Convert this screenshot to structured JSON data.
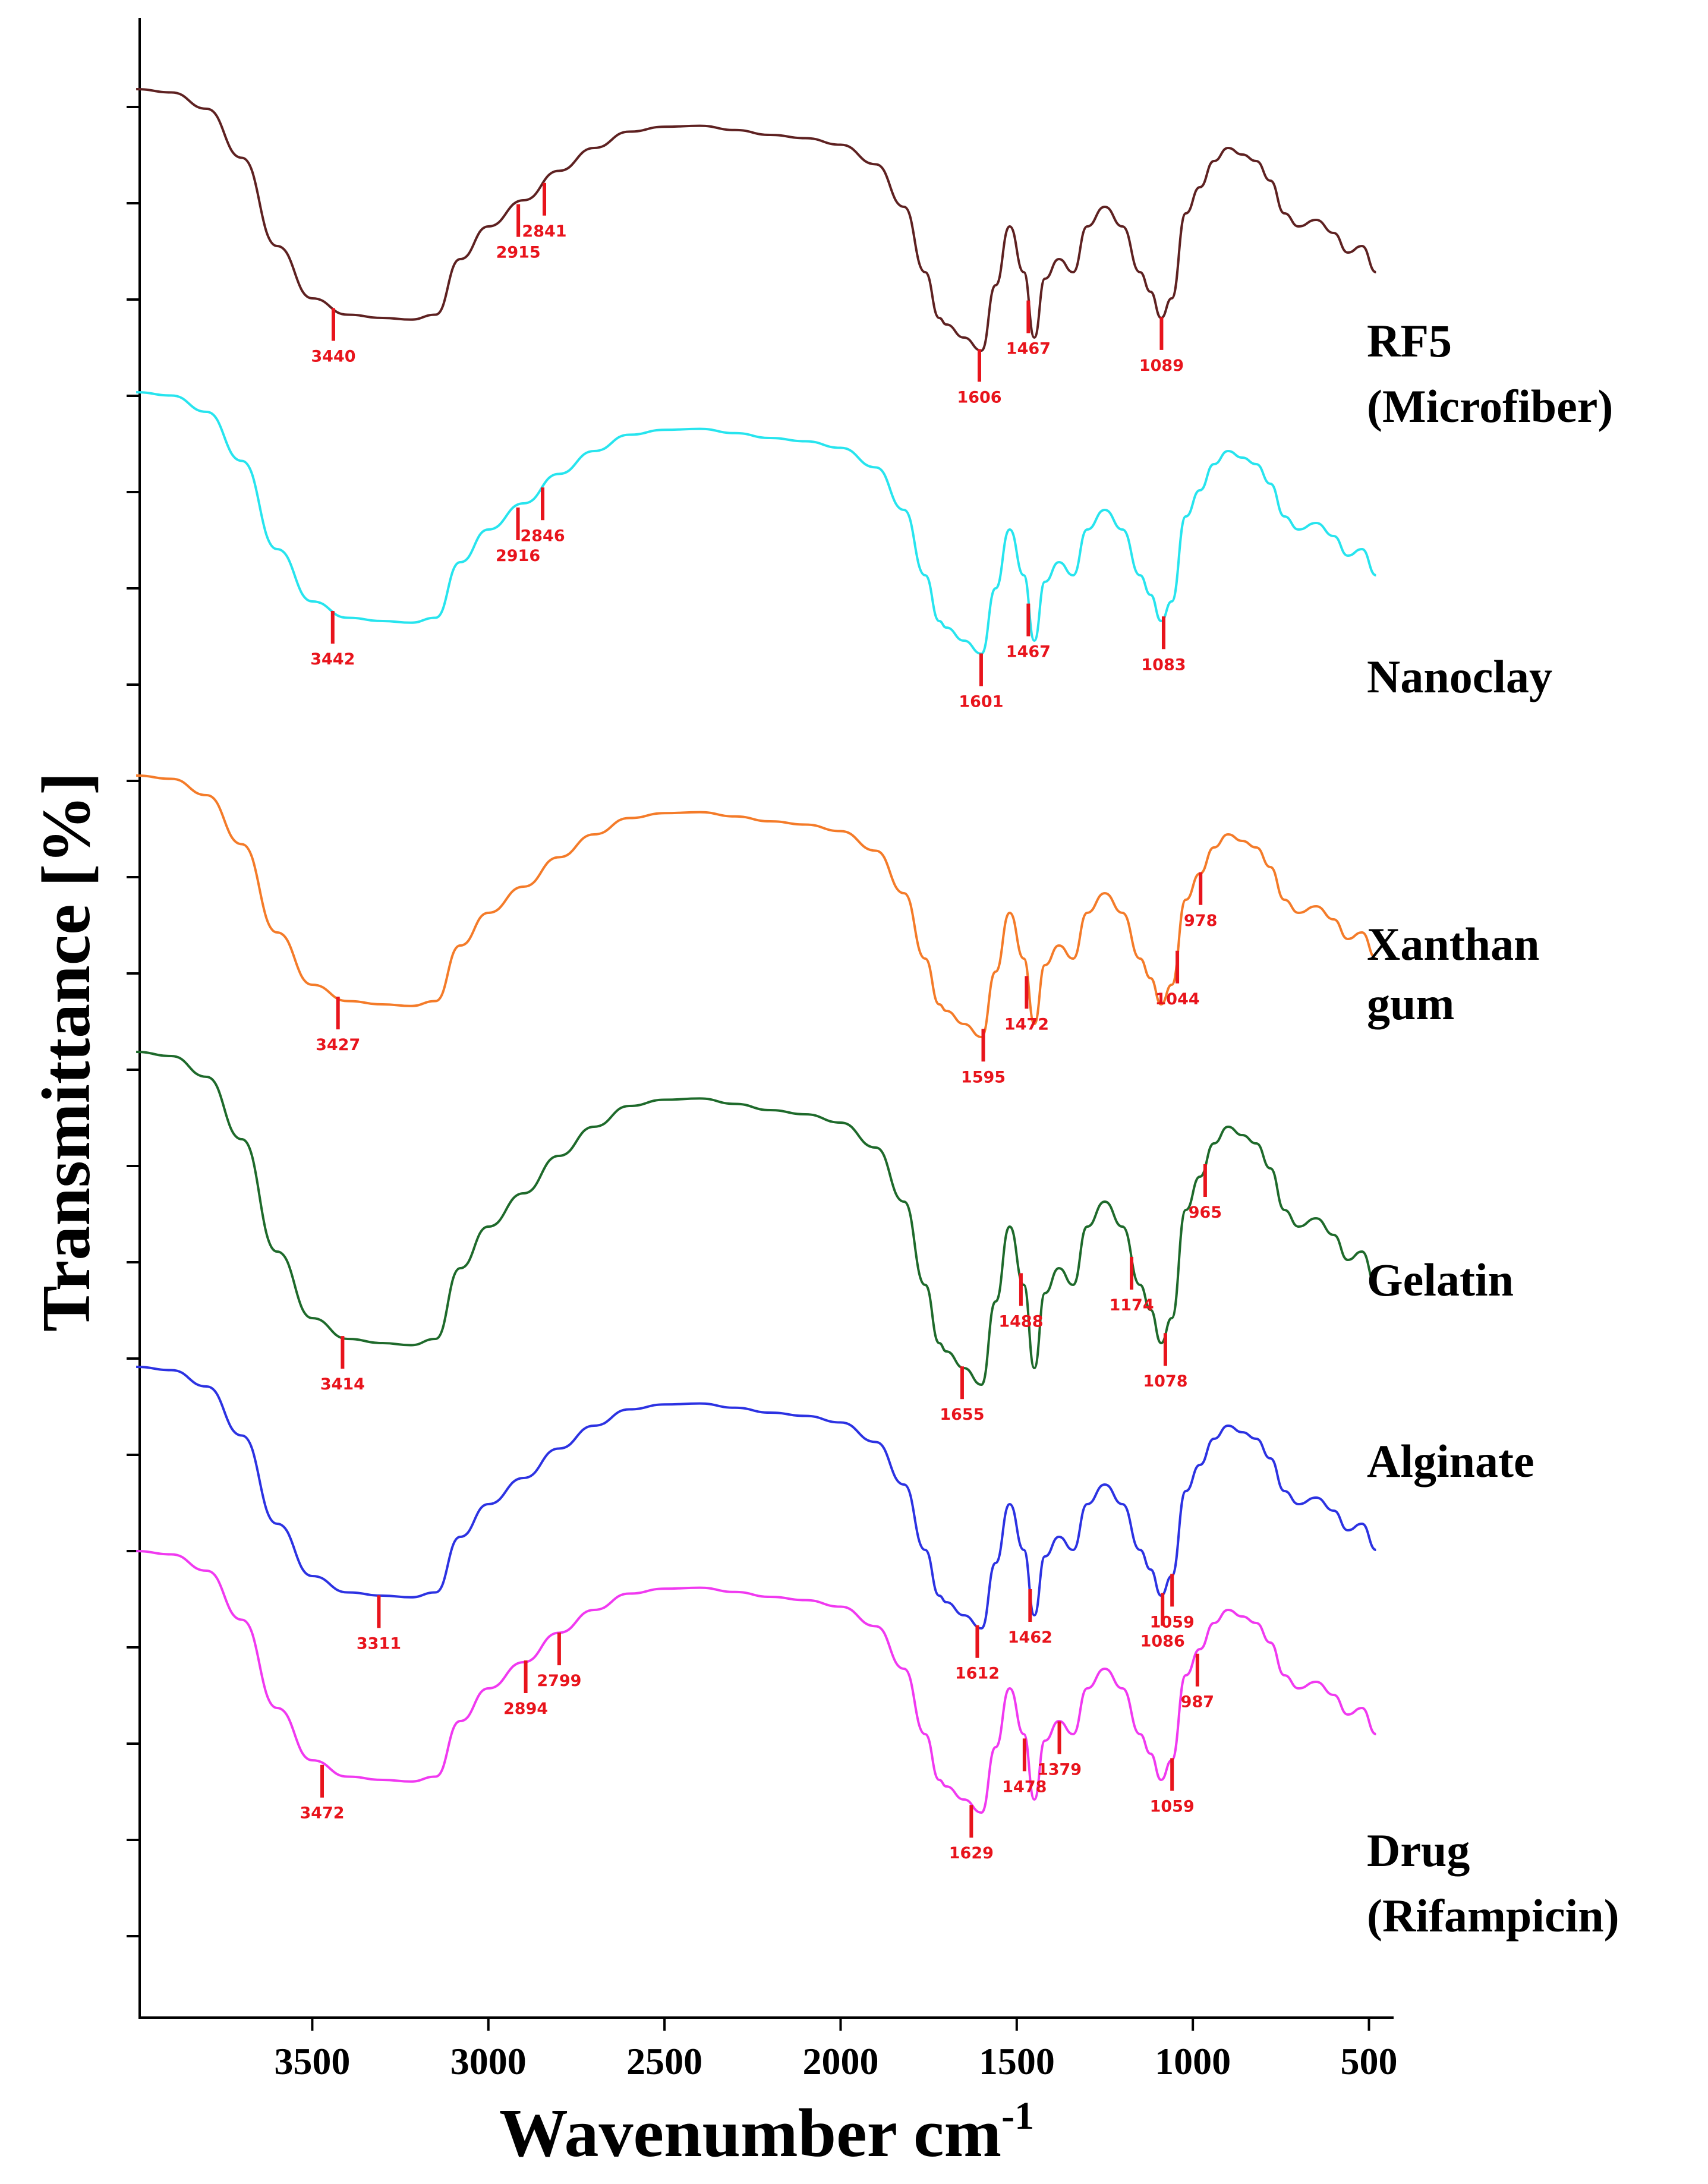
{
  "chart_data": {
    "type": "line",
    "title": "",
    "xlabel": "Wavenumber",
    "xlabel_unit": "cm",
    "xlabel_unit_exp": "-1",
    "ylabel": "Transmittance [%]",
    "xlim": [
      4000,
      400
    ],
    "x_reversed": true,
    "xticks": [
      3500,
      3000,
      2500,
      2000,
      1500,
      1000,
      500
    ],
    "yticks_labeled": false,
    "legend_placement": "right, beside each curve",
    "peak_marker_color": "#e8141c",
    "series": [
      {
        "name": "RF5 (Microfiber)",
        "label_lines": [
          "RF5",
          "(Microfiber)"
        ],
        "color": "#5e2121",
        "offset": 0,
        "peaks": [
          {
            "x": 3440,
            "label": "3440"
          },
          {
            "x": 2915,
            "label": "2915"
          },
          {
            "x": 2841,
            "label": "2841"
          },
          {
            "x": 1606,
            "label": "1606"
          },
          {
            "x": 1467,
            "label": "1467"
          },
          {
            "x": 1089,
            "label": "1089"
          }
        ]
      },
      {
        "name": "Nanoclay",
        "label_lines": [
          "Nanoclay"
        ],
        "color": "#27e4ee",
        "offset": 1,
        "peaks": [
          {
            "x": 3442,
            "label": "3442"
          },
          {
            "x": 2916,
            "label": "2916"
          },
          {
            "x": 2846,
            "label": "2846"
          },
          {
            "x": 1601,
            "label": "1601"
          },
          {
            "x": 1467,
            "label": "1467"
          },
          {
            "x": 1083,
            "label": "1083"
          }
        ]
      },
      {
        "name": "Xanthan gum",
        "label_lines": [
          "Xanthan",
          "gum"
        ],
        "color": "#f47b29",
        "offset": 2,
        "peaks": [
          {
            "x": 3427,
            "label": "3427"
          },
          {
            "x": 1595,
            "label": "1595"
          },
          {
            "x": 1472,
            "label": "1472"
          },
          {
            "x": 1044,
            "label": "1044"
          },
          {
            "x": 978,
            "label": "978"
          }
        ]
      },
      {
        "name": "Gelatin",
        "label_lines": [
          "Gelatin"
        ],
        "color": "#1e6a2b",
        "offset": 3,
        "peaks": [
          {
            "x": 3414,
            "label": "3414"
          },
          {
            "x": 1655,
            "label": "1655"
          },
          {
            "x": 1488,
            "label": "1488"
          },
          {
            "x": 1174,
            "label": "1174"
          },
          {
            "x": 1078,
            "label": "1078"
          },
          {
            "x": 965,
            "label": "965"
          }
        ]
      },
      {
        "name": "Alginate",
        "label_lines": [
          "Alginate"
        ],
        "color": "#2c32e2",
        "offset": 4,
        "peaks": [
          {
            "x": 3311,
            "label": "3311"
          },
          {
            "x": 1612,
            "label": "1612"
          },
          {
            "x": 1462,
            "label": "1462"
          },
          {
            "x": 1086,
            "label": "1086"
          },
          {
            "x": 1059,
            "label": "1059"
          }
        ]
      },
      {
        "name": "Drug (Rifampicin)",
        "label_lines": [
          "Drug",
          "(Rifampicin)"
        ],
        "color": "#f039f0",
        "offset": 5,
        "peaks": [
          {
            "x": 3472,
            "label": "3472"
          },
          {
            "x": 2894,
            "label": "2894"
          },
          {
            "x": 2799,
            "label": "2799"
          },
          {
            "x": 1629,
            "label": "1629"
          },
          {
            "x": 1478,
            "label": "1478"
          },
          {
            "x": 1379,
            "label": "1379"
          },
          {
            "x": 1059,
            "label": "1059"
          },
          {
            "x": 987,
            "label": "987"
          }
        ]
      }
    ]
  }
}
